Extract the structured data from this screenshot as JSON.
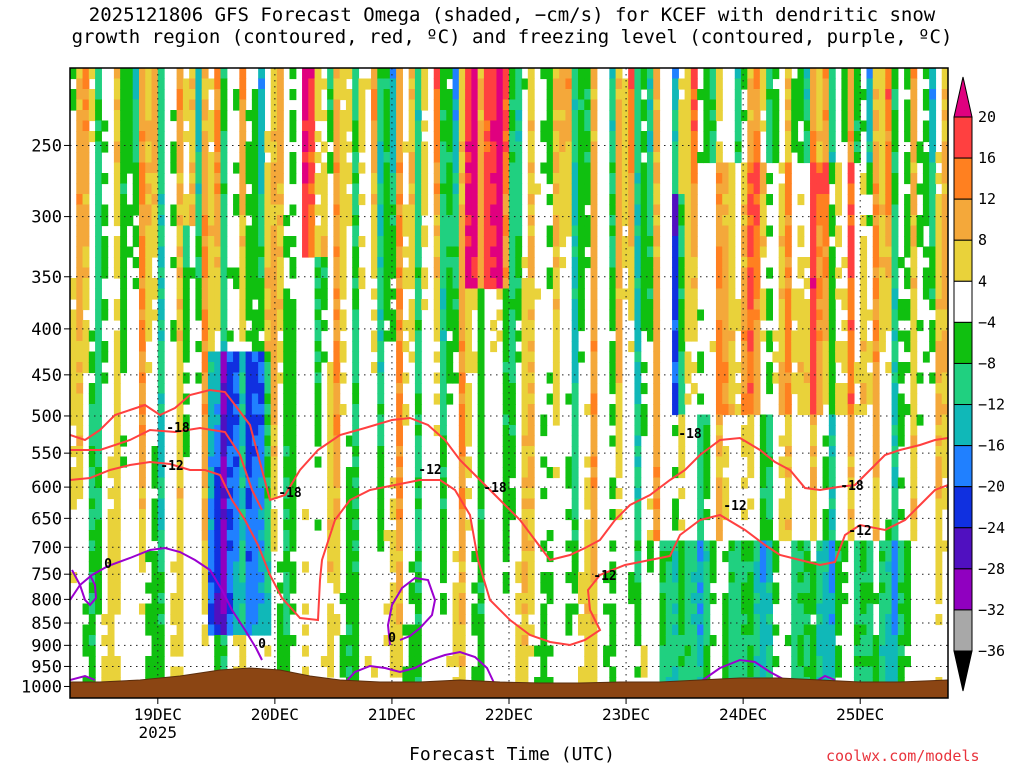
{
  "chart_data": {
    "type": "heatmap",
    "title_line1": "2025121806 GFS Forecast Omega (shaded, −cm/s) for KCEF with dendritic snow",
    "title_line2": "growth region (contoured, red, ºC) and freezing level (contoured, purple, ºC)",
    "xlabel": "Forecast Time (UTC)",
    "credit": "coolwx.com/models",
    "y_axis": {
      "quantity": "pressure (hPa)",
      "reversed": true,
      "ticks": [
        250,
        300,
        350,
        400,
        450,
        500,
        550,
        600,
        650,
        700,
        750,
        800,
        850,
        900,
        950,
        1000
      ]
    },
    "x_axis": {
      "ticks": [
        "19DEC",
        "20DEC",
        "21DEC",
        "22DEC",
        "23DEC",
        "24DEC",
        "25DEC"
      ],
      "year_label": "2025",
      "range_days": [
        18.25,
        25.75
      ]
    },
    "colorbar": {
      "labels": [
        "20",
        "16",
        "12",
        "8",
        "4",
        "−4",
        "−8",
        "−12",
        "−16",
        "−20",
        "−24",
        "−28",
        "−32",
        "−36"
      ],
      "colors": [
        "#e0007f",
        "#ff4040",
        "#ff8020",
        "#f4a83a",
        "#e9d23a",
        "#ffffff",
        "#10c010",
        "#20d080",
        "#10b8b8",
        "#2080ff",
        "#1030e0",
        "#5010c0",
        "#9000c0",
        "#a8a8a8",
        "#000000"
      ]
    },
    "contour_labels": {
      "dgz": [
        "-18",
        "-12"
      ],
      "freezing": [
        "0"
      ]
    },
    "grid": true
  }
}
